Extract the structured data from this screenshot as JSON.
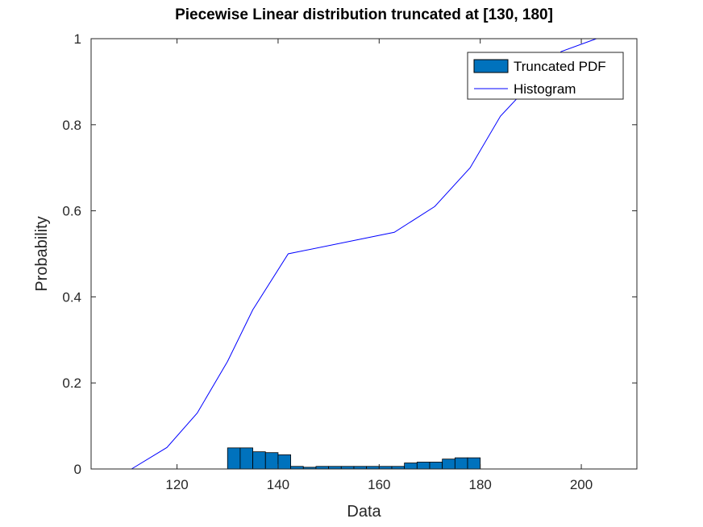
{
  "chart_data": {
    "type": "bar",
    "title": "Piecewise Linear distribution truncated at [130, 180]",
    "xlabel": "Data",
    "ylabel": "Probability",
    "xlim": [
      103,
      211
    ],
    "ylim": [
      0,
      1
    ],
    "xticks": [
      120,
      140,
      160,
      180,
      200
    ],
    "yticks": [
      0,
      0.2,
      0.4,
      0.6,
      0.8,
      1
    ],
    "grid": false,
    "legend": {
      "placement": "top-right",
      "entries": [
        "Truncated PDF",
        "Histogram"
      ]
    },
    "colors": {
      "bars": "#0072BD",
      "bar_edge": "#000000",
      "line": "#0000FF",
      "axes": "#262626"
    },
    "histogram": {
      "name": "Truncated PDF",
      "bin_edges": [
        130,
        132.5,
        135,
        137.5,
        140,
        142.5,
        145,
        147.5,
        150,
        152.5,
        155,
        157.5,
        160,
        162.5,
        165,
        167.5,
        170,
        172.5,
        175,
        177.5,
        180
      ],
      "values": [
        0.049,
        0.049,
        0.04,
        0.038,
        0.033,
        0.006,
        0.004,
        0.006,
        0.006,
        0.006,
        0.006,
        0.006,
        0.006,
        0.006,
        0.014,
        0.016,
        0.016,
        0.023,
        0.026,
        0.026,
        0.044
      ]
    },
    "line": {
      "name": "Histogram",
      "x": [
        111,
        118,
        124,
        130,
        135,
        142,
        163,
        171,
        178,
        184,
        196,
        203
      ],
      "y": [
        0,
        0.05,
        0.13,
        0.25,
        0.37,
        0.5,
        0.55,
        0.61,
        0.7,
        0.82,
        0.97,
        1.0
      ]
    }
  }
}
